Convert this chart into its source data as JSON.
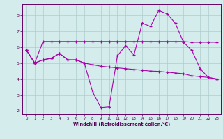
{
  "xlabel": "Windchill (Refroidissement éolien,°C)",
  "x": [
    0,
    1,
    2,
    3,
    4,
    5,
    6,
    7,
    8,
    9,
    10,
    11,
    12,
    13,
    14,
    15,
    16,
    17,
    18,
    19,
    20,
    21,
    22,
    23
  ],
  "line1": [
    5.8,
    5.0,
    5.2,
    5.3,
    5.6,
    5.2,
    5.2,
    5.0,
    3.2,
    2.2,
    2.25,
    5.45,
    6.1,
    5.5,
    7.5,
    7.3,
    8.3,
    8.1,
    7.5,
    6.3,
    5.8,
    4.65,
    4.1,
    4.0
  ],
  "line2": [
    5.8,
    5.0,
    6.35,
    6.35,
    6.35,
    6.35,
    6.35,
    6.35,
    6.35,
    6.35,
    6.35,
    6.35,
    6.35,
    6.35,
    6.35,
    6.35,
    6.35,
    6.35,
    6.35,
    6.35,
    6.3,
    6.3,
    6.3,
    6.3
  ],
  "line3": [
    5.8,
    5.0,
    5.2,
    5.3,
    5.6,
    5.2,
    5.2,
    5.0,
    4.9,
    4.8,
    4.75,
    4.7,
    4.65,
    4.6,
    4.55,
    4.5,
    4.48,
    4.43,
    4.38,
    4.33,
    4.2,
    4.15,
    4.1,
    4.0
  ],
  "line_color": "#aa00aa",
  "bg_color": "#d4ecec",
  "grid_color": "#b0cccc",
  "spine_color": "#660066",
  "tick_color": "#550055",
  "ylim": [
    1.8,
    8.7
  ],
  "yticks": [
    2,
    3,
    4,
    5,
    6,
    7,
    8
  ],
  "xticks": [
    0,
    1,
    2,
    3,
    4,
    5,
    6,
    7,
    8,
    9,
    10,
    11,
    12,
    13,
    14,
    15,
    16,
    17,
    18,
    19,
    20,
    21,
    22,
    23
  ]
}
